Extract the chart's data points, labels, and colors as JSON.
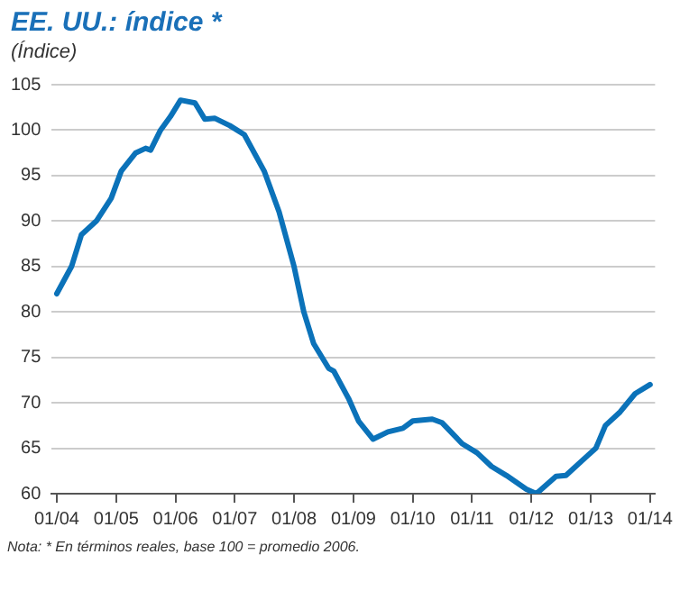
{
  "chart_data": {
    "type": "line",
    "title": "EE. UU.: índice *",
    "subtitle": "(Índice)",
    "x": [
      "2004-01",
      "2004-04",
      "2004-06",
      "2004-09",
      "2004-12",
      "2005-02",
      "2005-05",
      "2005-07",
      "2005-08",
      "2005-10",
      "2005-12",
      "2006-02",
      "2006-05",
      "2006-07",
      "2006-09",
      "2006-12",
      "2007-03",
      "2007-07",
      "2007-10",
      "2008-01",
      "2008-03",
      "2008-05",
      "2008-08",
      "2008-09",
      "2008-12",
      "2009-02",
      "2009-05",
      "2009-08",
      "2009-11",
      "2010-01",
      "2010-05",
      "2010-07",
      "2010-11",
      "2011-02",
      "2011-05",
      "2011-08",
      "2011-12",
      "2012-02",
      "2012-06",
      "2012-08",
      "2012-12",
      "2013-02",
      "2013-04",
      "2013-07",
      "2013-10",
      "2014-01"
    ],
    "series": [
      {
        "color": "#0b72b9",
        "values": [
          82,
          85,
          88.5,
          90,
          92.5,
          95.5,
          97.5,
          98,
          97.8,
          100,
          101.5,
          103.3,
          103,
          101.2,
          101.3,
          100.5,
          99.5,
          95.5,
          91,
          85,
          80,
          76.5,
          73.8,
          73.5,
          70.5,
          68,
          66,
          66.8,
          67.2,
          68,
          68.2,
          67.8,
          65.5,
          64.5,
          63,
          62,
          60.5,
          60,
          61.9,
          62,
          64,
          65,
          67.5,
          69,
          71,
          72
        ]
      }
    ],
    "xlim": [
      "2003-12",
      "2014-02"
    ],
    "xticks": [
      {
        "value": "2004-01",
        "label": "01/04"
      },
      {
        "value": "2005-01",
        "label": "01/05"
      },
      {
        "value": "2006-01",
        "label": "01/06"
      },
      {
        "value": "2007-01",
        "label": "01/07"
      },
      {
        "value": "2008-01",
        "label": "01/08"
      },
      {
        "value": "2009-01",
        "label": "01/09"
      },
      {
        "value": "2010-01",
        "label": "01/10"
      },
      {
        "value": "2011-01",
        "label": "01/11"
      },
      {
        "value": "2012-01",
        "label": "01/12"
      },
      {
        "value": "2013-01",
        "label": "01/13"
      },
      {
        "value": "2014-01",
        "label": "01/14"
      }
    ],
    "ylim": [
      60,
      105
    ],
    "yticks": [
      60,
      65,
      70,
      75,
      80,
      85,
      90,
      95,
      100,
      105
    ],
    "grid": "y",
    "marker": "none",
    "line_style": "solid",
    "annotations": [
      "Nota: * En términos reales, base 100 = promedio 2006."
    ]
  }
}
